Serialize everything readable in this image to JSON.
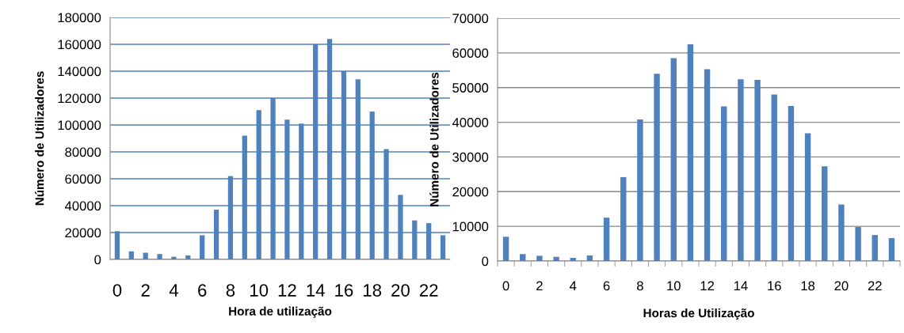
{
  "chart_data": [
    {
      "type": "bar",
      "xlabel": "Hora de utilização",
      "ylabel": "Número de Utilizadores",
      "categories": [
        "0",
        null,
        "2",
        null,
        "4",
        null,
        "6",
        null,
        "8",
        null,
        "10",
        null,
        "12",
        null,
        "14",
        null,
        "16",
        null,
        "18",
        null,
        "20",
        null,
        "22",
        null
      ],
      "values": [
        21000,
        6000,
        5000,
        4000,
        2000,
        3000,
        18000,
        37000,
        62000,
        92000,
        111000,
        120000,
        104000,
        101000,
        160000,
        164000,
        140000,
        134000,
        110000,
        82000,
        48000,
        29000,
        27000,
        18000
      ],
      "color": "#4f81bd",
      "ylim": [
        0,
        180000
      ],
      "yticks": [
        0,
        20000,
        40000,
        60000,
        80000,
        100000,
        120000,
        140000,
        160000,
        180000
      ],
      "grid": "y"
    },
    {
      "type": "bar",
      "xlabel": "Horas de Utilização",
      "ylabel": "Número de Utilizadores",
      "categories": [
        "0",
        null,
        "2",
        null,
        "4",
        null,
        "6",
        null,
        "8",
        null,
        "10",
        null,
        "12",
        null,
        "14",
        null,
        "16",
        null,
        "18",
        null,
        "20",
        null,
        "22",
        null
      ],
      "values": [
        7000,
        2000,
        1500,
        1200,
        900,
        1600,
        12500,
        24200,
        40800,
        54000,
        58500,
        62500,
        55300,
        44600,
        52400,
        52200,
        48000,
        44700,
        36800,
        27300,
        16300,
        9800,
        7500,
        6600
      ],
      "color": "#4f81bd",
      "ylim": [
        0,
        70000
      ],
      "yticks": [
        0,
        10000,
        20000,
        30000,
        40000,
        50000,
        60000,
        70000
      ],
      "grid": "y"
    }
  ]
}
